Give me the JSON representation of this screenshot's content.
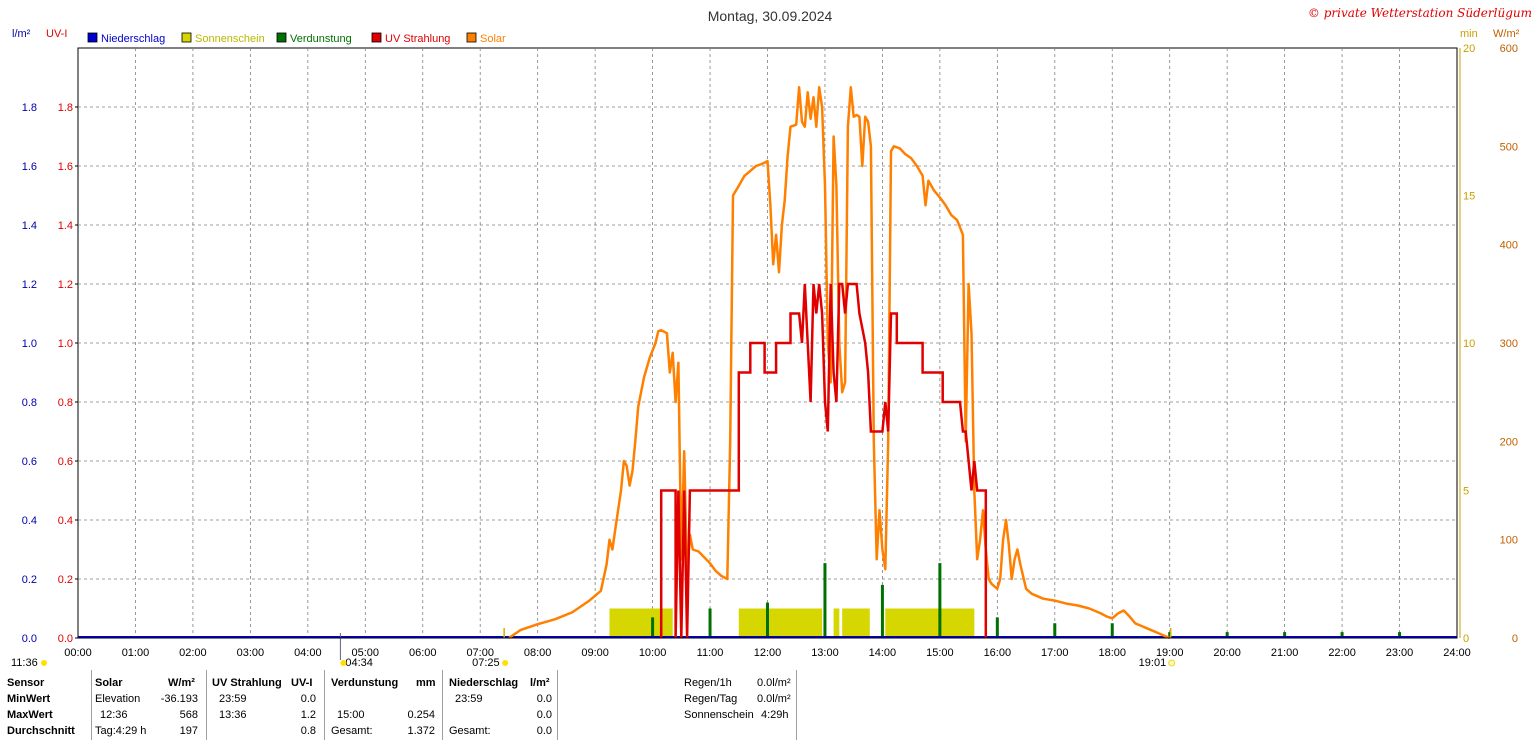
{
  "title": "Montag, 30.09.2024",
  "copyright": "© private Wetterstation Süderlügum",
  "colors": {
    "niederschlag": "#0000cc",
    "sonnenschein": "#d6d600",
    "verdunstung": "#007000",
    "uv": "#e00000",
    "solar": "#ff8000",
    "grid": "#808080"
  },
  "chart_data": {
    "type": "line",
    "x_ticks": [
      "00:00",
      "01:00",
      "02:00",
      "03:00",
      "04:00",
      "05:00",
      "06:00",
      "07:00",
      "08:00",
      "09:00",
      "10:00",
      "11:00",
      "12:00",
      "13:00",
      "14:00",
      "15:00",
      "16:00",
      "17:00",
      "18:00",
      "19:00",
      "20:00",
      "21:00",
      "22:00",
      "23:00",
      "24:00"
    ],
    "left_axis": {
      "unit1": "l/m²",
      "unit2": "UV-I",
      "ticks": [
        "0.0",
        "0.2",
        "0.4",
        "0.6",
        "0.8",
        "1.0",
        "1.2",
        "1.4",
        "1.6",
        "1.8"
      ],
      "range": [
        0,
        2.0
      ]
    },
    "right_axis_min": {
      "unit": "min",
      "ticks": [
        "0",
        "5",
        "10",
        "15",
        "20"
      ],
      "range": [
        0,
        20
      ]
    },
    "right_axis_wm2": {
      "unit": "W/m²",
      "ticks": [
        "0",
        "100",
        "200",
        "300",
        "400",
        "500",
        "600"
      ],
      "range": [
        0,
        600
      ]
    },
    "legend": [
      "Niederschlag",
      "Sonnenschein",
      "Verdunstung",
      "UV Strahlung",
      "Solar"
    ],
    "series": [
      {
        "name": "Solar",
        "axis": "W/m²",
        "points": [
          [
            7.5,
            0
          ],
          [
            7.7,
            8
          ],
          [
            8.0,
            14
          ],
          [
            8.3,
            19
          ],
          [
            8.6,
            26
          ],
          [
            8.9,
            38
          ],
          [
            9.1,
            48
          ],
          [
            9.2,
            75
          ],
          [
            9.25,
            100
          ],
          [
            9.3,
            90
          ],
          [
            9.35,
            110
          ],
          [
            9.45,
            150
          ],
          [
            9.5,
            180
          ],
          [
            9.55,
            175
          ],
          [
            9.6,
            155
          ],
          [
            9.65,
            170
          ],
          [
            9.7,
            200
          ],
          [
            9.75,
            235
          ],
          [
            9.85,
            265
          ],
          [
            9.95,
            285
          ],
          [
            10.05,
            300
          ],
          [
            10.1,
            312
          ],
          [
            10.15,
            313
          ],
          [
            10.25,
            310
          ],
          [
            10.3,
            270
          ],
          [
            10.35,
            290
          ],
          [
            10.4,
            240
          ],
          [
            10.45,
            280
          ],
          [
            10.5,
            80
          ],
          [
            10.55,
            190
          ],
          [
            10.6,
            60
          ],
          [
            10.65,
            105
          ],
          [
            10.7,
            90
          ],
          [
            10.8,
            88
          ],
          [
            10.9,
            82
          ],
          [
            11.0,
            76
          ],
          [
            11.1,
            68
          ],
          [
            11.2,
            63
          ],
          [
            11.3,
            60
          ],
          [
            11.35,
            200
          ],
          [
            11.4,
            450
          ],
          [
            11.5,
            460
          ],
          [
            11.6,
            470
          ],
          [
            11.7,
            475
          ],
          [
            11.8,
            480
          ],
          [
            11.9,
            482
          ],
          [
            12.0,
            485
          ],
          [
            12.05,
            440
          ],
          [
            12.1,
            380
          ],
          [
            12.15,
            410
          ],
          [
            12.2,
            372
          ],
          [
            12.25,
            420
          ],
          [
            12.3,
            445
          ],
          [
            12.35,
            490
          ],
          [
            12.4,
            520
          ],
          [
            12.5,
            522
          ],
          [
            12.55,
            560
          ],
          [
            12.6,
            525
          ],
          [
            12.65,
            520
          ],
          [
            12.7,
            555
          ],
          [
            12.75,
            528
          ],
          [
            12.8,
            550
          ],
          [
            12.85,
            520
          ],
          [
            12.9,
            560
          ],
          [
            12.95,
            540
          ],
          [
            13.0,
            460
          ],
          [
            13.05,
            300
          ],
          [
            13.1,
            260
          ],
          [
            13.15,
            510
          ],
          [
            13.2,
            460
          ],
          [
            13.25,
            300
          ],
          [
            13.3,
            250
          ],
          [
            13.35,
            260
          ],
          [
            13.4,
            520
          ],
          [
            13.45,
            560
          ],
          [
            13.5,
            530
          ],
          [
            13.55,
            532
          ],
          [
            13.6,
            530
          ],
          [
            13.65,
            480
          ],
          [
            13.7,
            530
          ],
          [
            13.75,
            525
          ],
          [
            13.8,
            500
          ],
          [
            13.85,
            200
          ],
          [
            13.9,
            80
          ],
          [
            13.95,
            130
          ],
          [
            14.0,
            90
          ],
          [
            14.05,
            70
          ],
          [
            14.1,
            200
          ],
          [
            14.15,
            495
          ],
          [
            14.2,
            500
          ],
          [
            14.3,
            498
          ],
          [
            14.4,
            492
          ],
          [
            14.5,
            488
          ],
          [
            14.6,
            480
          ],
          [
            14.7,
            470
          ],
          [
            14.75,
            440
          ],
          [
            14.8,
            465
          ],
          [
            14.9,
            455
          ],
          [
            15.0,
            448
          ],
          [
            15.1,
            440
          ],
          [
            15.2,
            430
          ],
          [
            15.3,
            425
          ],
          [
            15.4,
            410
          ],
          [
            15.45,
            200
          ],
          [
            15.5,
            360
          ],
          [
            15.55,
            310
          ],
          [
            15.6,
            150
          ],
          [
            15.65,
            80
          ],
          [
            15.7,
            100
          ],
          [
            15.75,
            130
          ],
          [
            15.8,
            90
          ],
          [
            15.85,
            60
          ],
          [
            15.9,
            55
          ],
          [
            16.0,
            50
          ],
          [
            16.05,
            60
          ],
          [
            16.1,
            100
          ],
          [
            16.15,
            120
          ],
          [
            16.2,
            95
          ],
          [
            16.25,
            60
          ],
          [
            16.3,
            80
          ],
          [
            16.35,
            90
          ],
          [
            16.4,
            75
          ],
          [
            16.5,
            50
          ],
          [
            16.6,
            45
          ],
          [
            16.8,
            40
          ],
          [
            17.0,
            38
          ],
          [
            17.2,
            35
          ],
          [
            17.4,
            33
          ],
          [
            17.6,
            30
          ],
          [
            17.8,
            25
          ],
          [
            17.9,
            22
          ],
          [
            18.0,
            20
          ],
          [
            18.1,
            25
          ],
          [
            18.2,
            28
          ],
          [
            18.3,
            22
          ],
          [
            18.4,
            15
          ],
          [
            18.6,
            10
          ],
          [
            18.8,
            5
          ],
          [
            19.0,
            0
          ]
        ]
      },
      {
        "name": "UV Strahlung",
        "axis": "UV-I",
        "points": [
          [
            10.15,
            0
          ],
          [
            10.15,
            0.5
          ],
          [
            10.4,
            0.5
          ],
          [
            10.4,
            0
          ],
          [
            10.45,
            0.5
          ],
          [
            10.5,
            0
          ],
          [
            10.55,
            0.5
          ],
          [
            10.6,
            0
          ],
          [
            10.65,
            0.5
          ],
          [
            11.5,
            0.5
          ],
          [
            11.5,
            0.9
          ],
          [
            11.7,
            0.9
          ],
          [
            11.7,
            1.0
          ],
          [
            11.95,
            1.0
          ],
          [
            11.95,
            0.9
          ],
          [
            12.15,
            0.9
          ],
          [
            12.15,
            1.0
          ],
          [
            12.4,
            1.0
          ],
          [
            12.4,
            1.1
          ],
          [
            12.55,
            1.1
          ],
          [
            12.6,
            1.0
          ],
          [
            12.65,
            1.2
          ],
          [
            12.7,
            1.0
          ],
          [
            12.75,
            0.8
          ],
          [
            12.8,
            1.2
          ],
          [
            12.85,
            1.1
          ],
          [
            12.9,
            1.2
          ],
          [
            12.95,
            1.1
          ],
          [
            13.0,
            0.8
          ],
          [
            13.05,
            0.7
          ],
          [
            13.1,
            1.2
          ],
          [
            13.15,
            0.9
          ],
          [
            13.2,
            0.8
          ],
          [
            13.25,
            1.2
          ],
          [
            13.3,
            1.2
          ],
          [
            13.35,
            1.1
          ],
          [
            13.4,
            1.2
          ],
          [
            13.55,
            1.2
          ],
          [
            13.6,
            1.1
          ],
          [
            13.7,
            1.0
          ],
          [
            13.75,
            0.9
          ],
          [
            13.8,
            0.7
          ],
          [
            14.0,
            0.7
          ],
          [
            14.05,
            0.8
          ],
          [
            14.1,
            0.7
          ],
          [
            14.15,
            1.1
          ],
          [
            14.25,
            1.1
          ],
          [
            14.25,
            1.0
          ],
          [
            14.7,
            1.0
          ],
          [
            14.7,
            0.9
          ],
          [
            15.05,
            0.9
          ],
          [
            15.05,
            0.8
          ],
          [
            15.35,
            0.8
          ],
          [
            15.4,
            0.7
          ],
          [
            15.45,
            0.7
          ],
          [
            15.5,
            0.6
          ],
          [
            15.55,
            0.5
          ],
          [
            15.6,
            0.6
          ],
          [
            15.65,
            0.5
          ],
          [
            15.7,
            0.5
          ],
          [
            15.8,
            0.5
          ],
          [
            15.8,
            0
          ]
        ]
      },
      {
        "name": "Sonnenschein",
        "axis": "min",
        "bars": [
          [
            9.25,
            10.35,
            1.0
          ],
          [
            11.5,
            12.95,
            1.0
          ],
          [
            13.15,
            13.25,
            1.0
          ],
          [
            13.3,
            13.78,
            1.0
          ],
          [
            14.05,
            15.6,
            1.0
          ]
        ]
      },
      {
        "name": "Verdunstung",
        "axis": "l/m²",
        "ticks": [
          [
            10.0,
            0.07
          ],
          [
            11.0,
            0.1
          ],
          [
            12.0,
            0.12
          ],
          [
            13.0,
            0.254
          ],
          [
            14.0,
            0.18
          ],
          [
            15.0,
            0.254
          ],
          [
            16.0,
            0.07
          ],
          [
            17.0,
            0.05
          ],
          [
            18.0,
            0.05
          ],
          [
            19.0,
            0.02
          ],
          [
            20.0,
            0.02
          ],
          [
            21.0,
            0.02
          ],
          [
            22.0,
            0.02
          ],
          [
            23.0,
            0.02
          ]
        ]
      },
      {
        "name": "Niederschlag",
        "axis": "l/m²",
        "points": [
          [
            0,
            0
          ],
          [
            24,
            0
          ]
        ]
      }
    ]
  },
  "markers": {
    "moon_rise": "11:36",
    "sun_rise": "07:25",
    "sun_set": "19:01",
    "moon_set": "04:34"
  },
  "stats": {
    "headers": {
      "sensor": "Sensor",
      "solar": "Solar",
      "solar_unit": "W/m²",
      "uv": "UV Strahlung",
      "uv_unit": "UV-I",
      "verd": "Verdunstung",
      "verd_unit": "mm",
      "nied": "Niederschlag",
      "nied_unit": "l/m²"
    },
    "rows": [
      {
        "label": "MinWert",
        "solar_c1": "Elevation",
        "solar_c2": "-36.193",
        "uv_c1": "23:59",
        "uv_c2": "0.0",
        "verd_c1": "",
        "verd_c2": "",
        "nied_c1": "23:59",
        "nied_c2": "0.0"
      },
      {
        "label": "MaxWert",
        "solar_c1": "12:36",
        "solar_c2": "568",
        "uv_c1": "13:36",
        "uv_c2": "1.2",
        "verd_c1": "15:00",
        "verd_c2": "0.254",
        "nied_c1": "",
        "nied_c2": "0.0"
      },
      {
        "label": "Durchschnitt",
        "solar_c1": "Tag:4:29 h",
        "solar_c2": "197",
        "uv_c1": "",
        "uv_c2": "0.8",
        "verd_c1": "Gesamt:",
        "verd_c2": "1.372",
        "nied_c1": "Gesamt:",
        "nied_c2": "0.0"
      }
    ],
    "extra": [
      {
        "label": "Regen/1h",
        "value": "0.0l/m²"
      },
      {
        "label": "Regen/Tag",
        "value": "0.0l/m²"
      },
      {
        "label": "Sonnenschein",
        "value": "4:29h"
      }
    ]
  }
}
